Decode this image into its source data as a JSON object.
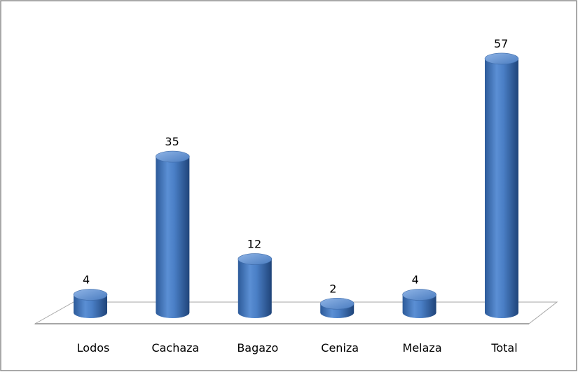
{
  "chart_data": {
    "type": "bar",
    "style": "3d-cylinder",
    "categories": [
      "Lodos",
      "Cachaza",
      "Bagazo",
      "Ceniza",
      "Melaza",
      "Total"
    ],
    "values": [
      4,
      35,
      12,
      2,
      4,
      57
    ],
    "color": "#4f81bd"
  }
}
